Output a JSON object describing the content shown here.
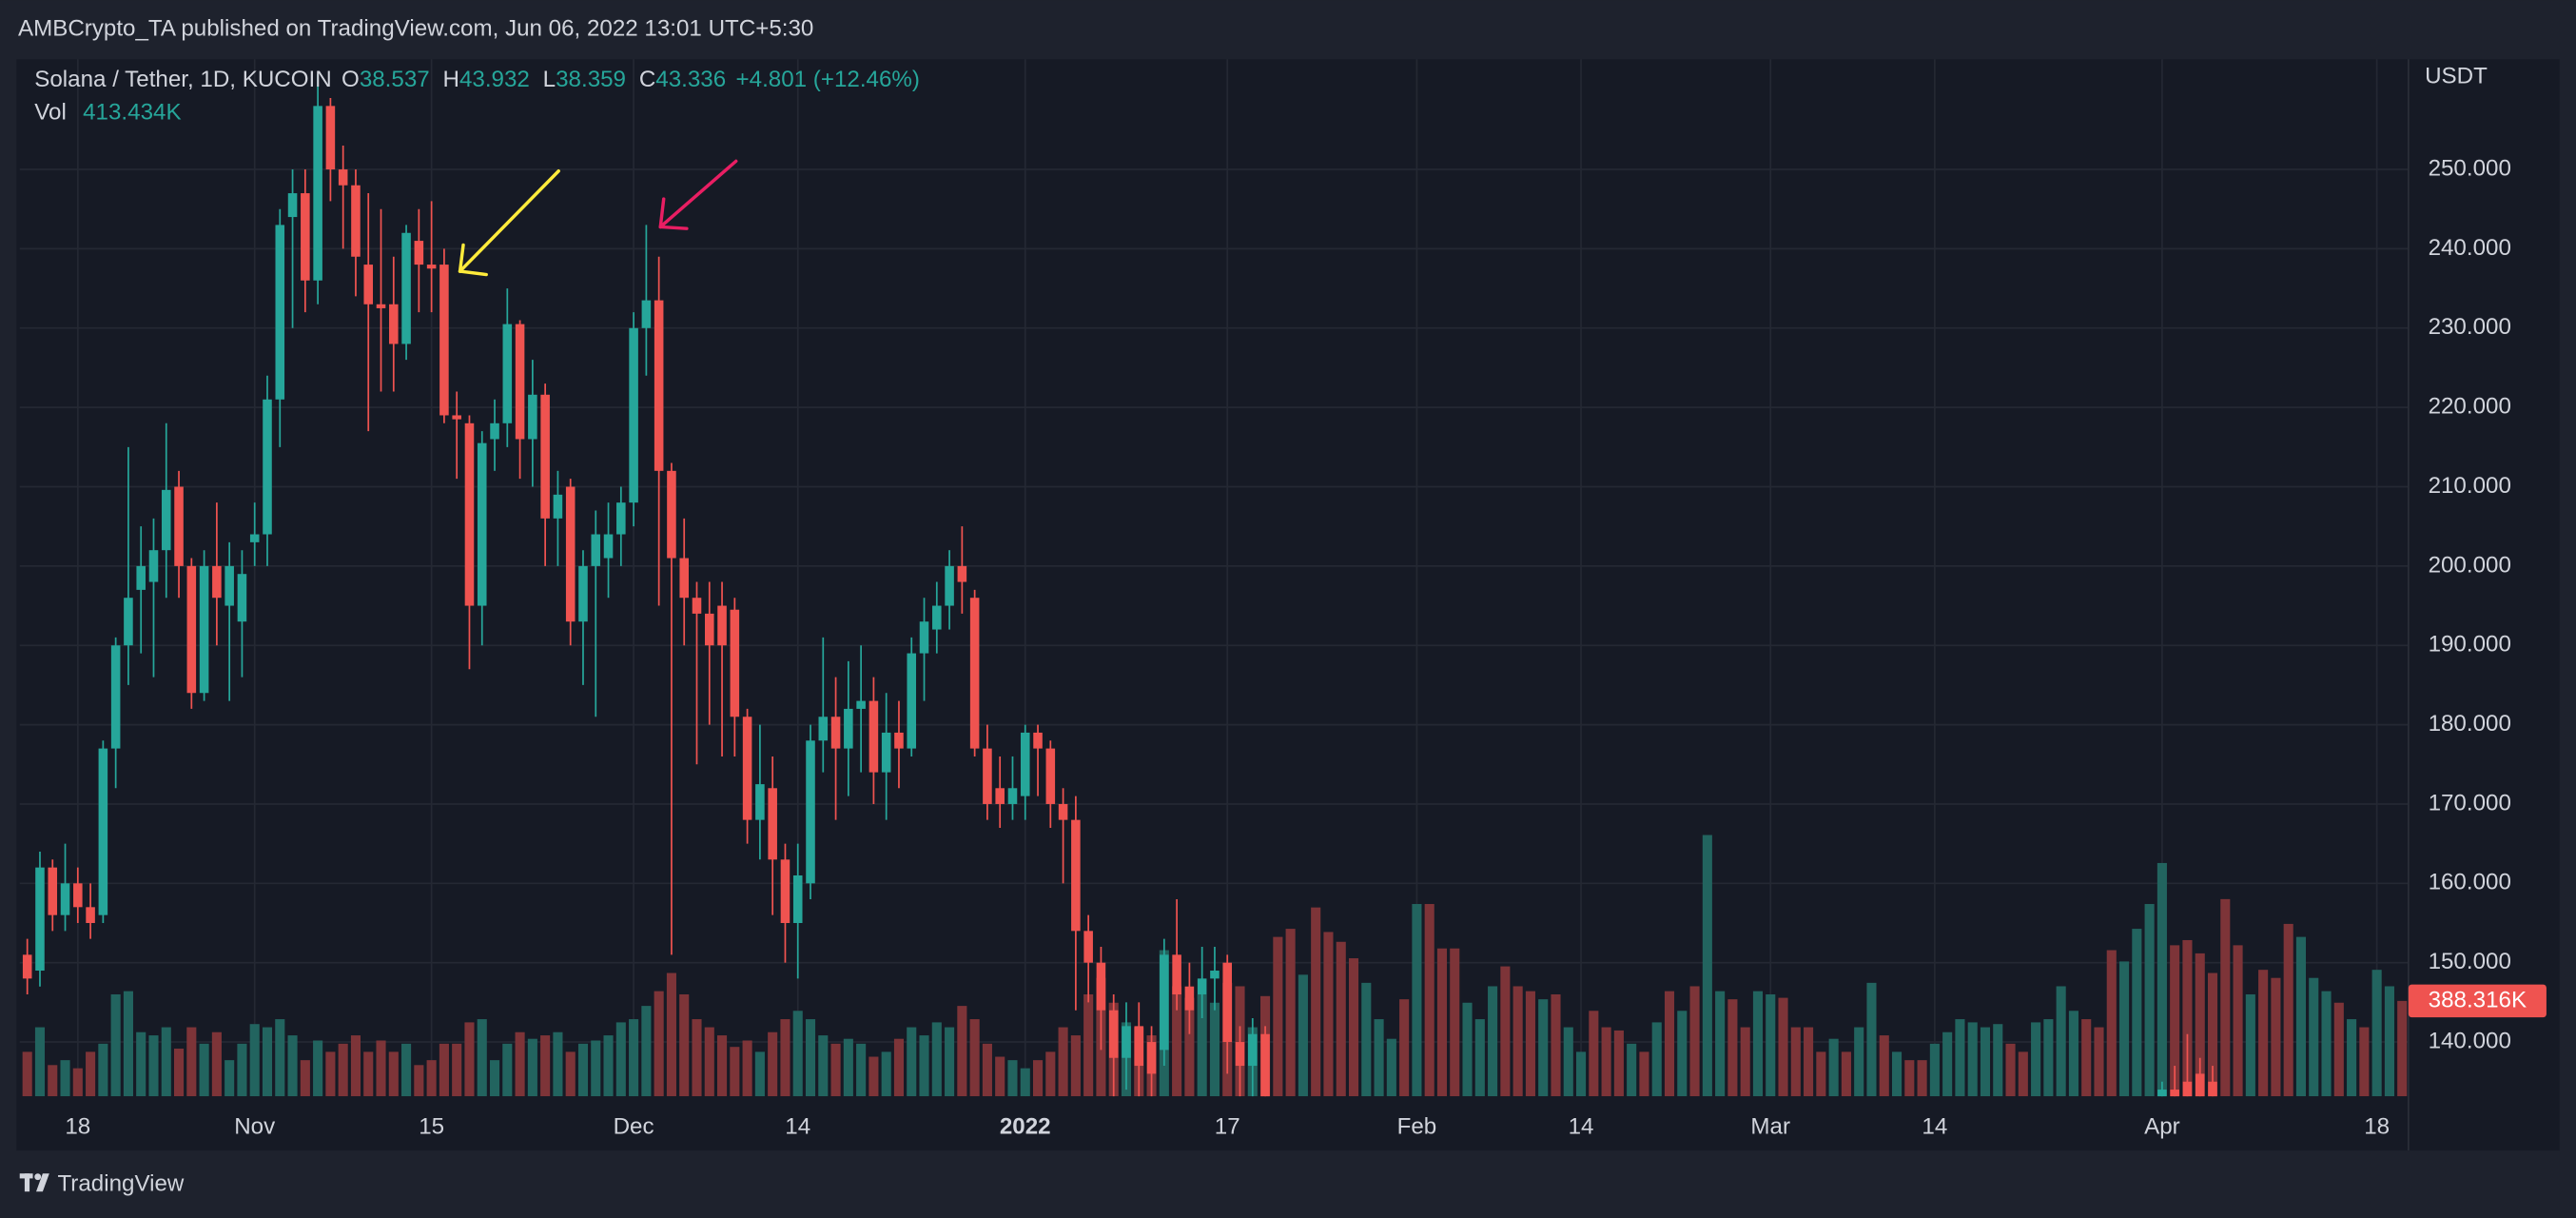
{
  "header": {
    "publisher": "AMBCrypto_TA published on TradingView.com, Jun 06, 2022 13:01 UTC+5:30",
    "brand": "TradingView"
  },
  "chart_data": {
    "type": "candlestick",
    "symbol": "Solana / Tether, 1D, KUCOIN",
    "legend": {
      "o_label": "O",
      "o": 38.537,
      "h_label": "H",
      "h": 43.932,
      "l_label": "L",
      "l": 38.359,
      "c_label": "C",
      "c": 43.336,
      "change": "+4.801 (+12.46%)",
      "vol_label": "Vol",
      "vol": "413.434K"
    },
    "currency": "USDT",
    "up_color": "#26a69a",
    "down_color": "#ef5350",
    "volume_up_color": "#22645f",
    "volume_down_color": "#7d3438",
    "grid": true,
    "xlim": [
      -0.6,
      188.5
    ],
    "xticks": [
      {
        "value": 4,
        "label": "18"
      },
      {
        "value": 18,
        "label": "Nov"
      },
      {
        "value": 32,
        "label": "15"
      },
      {
        "value": 48,
        "label": "Dec"
      },
      {
        "value": 61,
        "label": "14"
      },
      {
        "value": 79,
        "label": "2022",
        "bold": true
      },
      {
        "value": 95,
        "label": "17"
      },
      {
        "value": 110,
        "label": "Feb"
      },
      {
        "value": 123,
        "label": "14"
      },
      {
        "value": 138,
        "label": "Mar"
      },
      {
        "value": 151,
        "label": "14"
      },
      {
        "value": 169,
        "label": "Apr"
      },
      {
        "value": 186,
        "label": "18"
      }
    ],
    "ylim": [
      133.16,
      263.47
    ],
    "yticks": [
      {
        "value": 140,
        "label": "140.000"
      },
      {
        "value": 150,
        "label": "150.000"
      },
      {
        "value": 160,
        "label": "160.000"
      },
      {
        "value": 170,
        "label": "170.000"
      },
      {
        "value": 180,
        "label": "180.000"
      },
      {
        "value": 190,
        "label": "190.000"
      },
      {
        "value": 200,
        "label": "200.000"
      },
      {
        "value": 210,
        "label": "210.000"
      },
      {
        "value": 220,
        "label": "220.000"
      },
      {
        "value": 230,
        "label": "230.000"
      },
      {
        "value": 240,
        "label": "240.000"
      },
      {
        "value": 250,
        "label": "250.000"
      }
    ],
    "volume_lim": [
      0,
      4210
    ],
    "ohlc": [
      [
        151,
        153,
        146,
        148
      ],
      [
        149,
        164,
        147,
        162
      ],
      [
        162,
        163,
        154,
        156
      ],
      [
        156,
        165,
        154,
        160
      ],
      [
        160,
        162,
        155,
        157
      ],
      [
        157,
        160,
        153,
        155
      ],
      [
        156,
        178,
        155,
        177
      ],
      [
        177,
        191,
        172,
        190
      ],
      [
        190,
        215,
        185,
        196
      ],
      [
        197,
        205,
        189,
        200
      ],
      [
        198,
        206,
        186,
        202
      ],
      [
        202,
        218,
        196,
        209.6
      ],
      [
        210,
        212,
        196,
        200
      ],
      [
        200,
        201,
        182,
        184
      ],
      [
        184,
        202,
        183,
        200
      ],
      [
        200,
        208,
        190,
        196
      ],
      [
        195,
        203,
        183,
        200
      ],
      [
        193,
        202,
        186,
        199
      ],
      [
        203,
        208,
        200,
        204
      ],
      [
        204,
        224,
        200,
        221
      ],
      [
        221,
        245,
        215,
        243
      ],
      [
        244,
        250,
        230,
        247
      ],
      [
        247,
        250,
        232,
        236
      ],
      [
        236,
        262,
        233,
        258
      ],
      [
        258,
        259,
        246,
        250
      ],
      [
        250,
        253,
        240,
        248
      ],
      [
        248,
        250,
        234,
        239
      ],
      [
        238,
        247,
        217,
        233
      ],
      [
        233,
        245,
        222,
        232.5
      ],
      [
        233,
        239,
        222,
        228
      ],
      [
        228,
        243,
        226,
        242
      ],
      [
        241,
        245,
        232,
        238
      ],
      [
        238,
        246,
        232,
        237.5
      ],
      [
        238,
        240,
        218,
        219
      ],
      [
        219,
        222,
        211,
        218.5
      ],
      [
        218,
        219,
        187,
        195
      ],
      [
        195,
        217,
        190,
        215.5
      ],
      [
        216,
        221,
        212,
        218
      ],
      [
        218,
        235,
        215,
        230.5
      ],
      [
        230.5,
        231,
        211,
        216
      ],
      [
        216,
        226,
        210,
        221.6
      ],
      [
        221.6,
        223,
        200,
        206
      ],
      [
        206,
        212,
        200,
        209
      ],
      [
        210,
        211,
        190,
        193
      ],
      [
        193,
        202,
        185,
        200
      ],
      [
        200,
        207,
        181,
        204
      ],
      [
        201,
        208,
        196,
        204
      ],
      [
        204,
        210,
        200,
        208
      ],
      [
        208,
        232,
        205,
        230
      ],
      [
        230,
        243,
        224,
        233.5
      ],
      [
        233.5,
        239,
        195,
        212
      ],
      [
        212,
        213,
        151,
        201
      ],
      [
        201,
        206,
        190,
        196
      ],
      [
        196,
        198,
        175,
        194
      ],
      [
        194,
        198,
        180,
        190
      ],
      [
        195,
        198,
        176,
        190
      ],
      [
        194.5,
        196,
        176,
        181
      ],
      [
        181,
        182,
        165,
        168
      ],
      [
        168,
        180,
        163,
        172.5
      ],
      [
        172,
        176,
        156,
        163
      ],
      [
        163,
        165,
        150,
        155
      ],
      [
        155,
        165,
        148,
        161
      ],
      [
        160,
        180,
        158,
        178
      ],
      [
        178,
        191,
        174,
        181
      ],
      [
        181,
        186,
        168,
        177
      ],
      [
        177,
        188,
        171,
        182
      ],
      [
        182,
        190,
        174,
        183
      ],
      [
        183,
        186,
        170,
        174
      ],
      [
        174,
        184,
        168,
        179
      ],
      [
        179,
        183,
        172,
        177
      ],
      [
        177,
        191,
        176,
        189
      ],
      [
        189,
        196,
        183,
        193
      ],
      [
        192,
        198,
        189,
        195
      ],
      [
        195,
        202,
        192,
        200
      ],
      [
        200,
        205,
        194,
        198
      ],
      [
        196,
        197,
        176,
        177
      ],
      [
        177,
        180,
        168,
        170
      ],
      [
        172,
        176,
        167,
        170
      ],
      [
        170,
        176,
        168,
        172
      ],
      [
        171,
        180,
        168,
        179
      ],
      [
        179,
        180,
        171,
        177
      ],
      [
        177,
        178,
        167,
        170
      ],
      [
        170,
        172,
        160,
        168
      ],
      [
        168,
        171,
        144,
        154
      ],
      [
        154,
        156,
        145,
        150
      ],
      [
        150,
        152,
        139,
        144
      ],
      [
        144,
        146,
        133,
        138
      ],
      [
        138,
        145,
        134,
        142
      ],
      [
        142,
        145,
        133,
        137
      ],
      [
        140,
        142,
        133,
        136
      ],
      [
        139,
        153,
        137,
        151
      ],
      [
        151,
        158,
        144,
        146
      ],
      [
        147,
        150,
        141,
        144
      ],
      [
        146,
        152,
        143,
        148
      ],
      [
        148,
        152,
        144,
        149
      ],
      [
        150,
        151,
        136,
        140
      ],
      [
        140,
        142,
        133,
        137
      ],
      [
        137,
        143,
        133,
        141
      ],
      [
        141,
        142,
        128,
        130
      ],
      null,
      null,
      null,
      null,
      null,
      null,
      null,
      null,
      null,
      null,
      null,
      null,
      null,
      null,
      null,
      null,
      null,
      null,
      null,
      null,
      null,
      null,
      null,
      null,
      null,
      null,
      null,
      null,
      null,
      null,
      null,
      null,
      null,
      null,
      null,
      null,
      null,
      null,
      null,
      null,
      null,
      null,
      null,
      null,
      null,
      null,
      null,
      null,
      null,
      null,
      null,
      null,
      null,
      null,
      null,
      null,
      null,
      null,
      null,
      null,
      null,
      null,
      null,
      null,
      null,
      null,
      null,
      null,
      null,
      null,
      [
        132,
        135,
        130,
        134
      ],
      [
        134,
        137,
        131,
        133
      ],
      [
        135,
        141,
        131,
        133
      ],
      [
        136,
        138,
        132,
        133
      ],
      [
        135,
        137,
        129,
        131
      ],
      null,
      null,
      null,
      null,
      null,
      null,
      null,
      null,
      null,
      null,
      null,
      null,
      null,
      null,
      null
    ],
    "volume": {
      "values": [
        181,
        281,
        127,
        147,
        114,
        181,
        214,
        415,
        428,
        261,
        248,
        281,
        194,
        281,
        214,
        261,
        147,
        214,
        294,
        281,
        314,
        248,
        147,
        227,
        181,
        214,
        248,
        181,
        227,
        181,
        214,
        127,
        147,
        214,
        214,
        301,
        314,
        147,
        214,
        261,
        234,
        248,
        261,
        181,
        214,
        227,
        248,
        301,
        314,
        368,
        428,
        502,
        415,
        314,
        281,
        248,
        201,
        227,
        181,
        261,
        314,
        348,
        314,
        248,
        214,
        234,
        214,
        161,
        181,
        234,
        281,
        248,
        301,
        281,
        368,
        314,
        214,
        161,
        147,
        114,
        147,
        181,
        281,
        248,
        415,
        482,
        381,
        301,
        281,
        248,
        595,
        448,
        401,
        415,
        381,
        462,
        448,
        281,
        408,
        649,
        682,
        495,
        769,
        669,
        629,
        562,
        462,
        314,
        234,
        395,
        783,
        783,
        602,
        602,
        381,
        314,
        448,
        529,
        448,
        428,
        395,
        415,
        281,
        181,
        348,
        281,
        268,
        214,
        181,
        301,
        428,
        348,
        448,
        1064,
        428,
        395,
        281,
        428,
        415,
        401,
        281,
        281,
        181,
        234,
        181,
        281,
        462,
        248,
        181,
        147,
        147,
        214,
        261,
        314,
        301,
        281,
        294,
        214,
        181,
        301,
        314,
        448,
        348,
        314,
        281,
        595,
        549,
        682,
        783,
        950,
        615,
        636,
        582,
        502,
        803,
        615,
        415,
        515,
        482,
        702,
        649,
        482,
        428,
        381,
        314,
        281,
        515,
        448,
        388.316
      ],
      "rising": [
        false,
        true,
        false,
        true,
        false,
        false,
        true,
        true,
        true,
        true,
        true,
        true,
        false,
        false,
        true,
        false,
        true,
        true,
        true,
        true,
        true,
        true,
        false,
        true,
        false,
        false,
        false,
        false,
        false,
        false,
        true,
        false,
        false,
        false,
        false,
        false,
        true,
        true,
        true,
        false,
        true,
        false,
        true,
        false,
        true,
        true,
        true,
        true,
        true,
        true,
        false,
        false,
        false,
        false,
        false,
        false,
        false,
        false,
        true,
        false,
        false,
        true,
        true,
        true,
        false,
        true,
        true,
        false,
        true,
        false,
        true,
        true,
        true,
        true,
        false,
        false,
        false,
        false,
        true,
        true,
        false,
        false,
        false,
        false,
        false,
        false,
        false,
        true,
        false,
        false,
        true,
        false,
        false,
        true,
        true,
        false,
        false,
        true,
        false,
        false,
        false,
        true,
        false,
        false,
        false,
        false,
        true,
        true,
        true,
        false,
        true,
        false,
        false,
        false,
        true,
        true,
        true,
        false,
        false,
        false,
        true,
        false,
        true,
        true,
        false,
        false,
        false,
        true,
        false,
        true,
        false,
        true,
        false,
        true,
        true,
        false,
        false,
        true,
        true,
        false,
        false,
        false,
        false,
        true,
        false,
        true,
        true,
        false,
        true,
        false,
        false,
        true,
        true,
        true,
        true,
        true,
        true,
        false,
        false,
        true,
        true,
        true,
        true,
        false,
        false,
        false,
        true,
        true,
        true,
        true,
        false,
        false,
        false,
        false,
        false,
        false,
        true,
        false,
        false,
        false,
        true,
        true,
        true,
        false,
        true,
        false,
        true,
        true,
        false
      ],
      "last_label": "388.316K"
    }
  }
}
